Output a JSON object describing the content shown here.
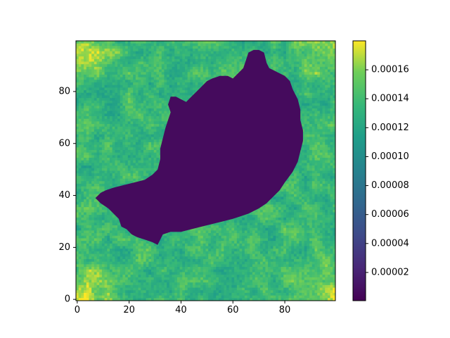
{
  "chart_data": {
    "type": "heatmap",
    "title": "",
    "xlabel": "",
    "ylabel": "",
    "image_size": [
      100,
      100
    ],
    "xlim": [
      -0.5,
      99.5
    ],
    "ylim": [
      99.5,
      -0.5
    ],
    "x_ticks": [
      0,
      20,
      40,
      60,
      80
    ],
    "x_tick_labels": [
      "0",
      "20",
      "40",
      "60",
      "80"
    ],
    "y_ticks": [
      0,
      20,
      40,
      60,
      80
    ],
    "y_tick_labels": [
      "0",
      "20",
      "40",
      "60",
      "80"
    ],
    "colormap": "viridis",
    "colorbar": {
      "range": [
        5e-07,
        0.00018
      ],
      "ticks": [
        2e-05,
        4e-05,
        6e-05,
        8e-05,
        0.0001,
        0.00012,
        0.00014,
        0.00016
      ],
      "tick_labels": [
        "0.00002",
        "0.00004",
        "0.00006",
        "0.00008",
        "0.00010",
        "0.00012",
        "0.00014",
        "0.00016"
      ]
    },
    "content_description": "saliency-like heatmap of a dark bear silhouette (low values) on a bright green-yellow background (high values)",
    "background_level": 0.000135,
    "corner_level": 0.000172,
    "silhouette_level": 6e-06,
    "silhouette_outline": [
      [
        7,
        39
      ],
      [
        9,
        37
      ],
      [
        12,
        35
      ],
      [
        14,
        33
      ],
      [
        16,
        31
      ],
      [
        17,
        28
      ],
      [
        19,
        27
      ],
      [
        21,
        25
      ],
      [
        23,
        24
      ],
      [
        26,
        23
      ],
      [
        29,
        22
      ],
      [
        31,
        21
      ],
      [
        32,
        23
      ],
      [
        33,
        25
      ],
      [
        36,
        26
      ],
      [
        40,
        26
      ],
      [
        44,
        27
      ],
      [
        48,
        28
      ],
      [
        52,
        29
      ],
      [
        56,
        30
      ],
      [
        60,
        31
      ],
      [
        63,
        32
      ],
      [
        66,
        33
      ],
      [
        70,
        35
      ],
      [
        73,
        37
      ],
      [
        75,
        39
      ],
      [
        78,
        42
      ],
      [
        80,
        45
      ],
      [
        83,
        49
      ],
      [
        85,
        53
      ],
      [
        86,
        57
      ],
      [
        87,
        61
      ],
      [
        87,
        65
      ],
      [
        86,
        69
      ],
      [
        86,
        73
      ],
      [
        85,
        77
      ],
      [
        83,
        81
      ],
      [
        82,
        84
      ],
      [
        80,
        86
      ],
      [
        78,
        87
      ],
      [
        76,
        88
      ],
      [
        74,
        89
      ],
      [
        73,
        91
      ],
      [
        72,
        95
      ],
      [
        70,
        96
      ],
      [
        68,
        96
      ],
      [
        66,
        95
      ],
      [
        65,
        92
      ],
      [
        64,
        89
      ],
      [
        62,
        87
      ],
      [
        60,
        85
      ],
      [
        58,
        86
      ],
      [
        55,
        86
      ],
      [
        52,
        85
      ],
      [
        50,
        84
      ],
      [
        48,
        82
      ],
      [
        46,
        80
      ],
      [
        44,
        78
      ],
      [
        42,
        76
      ],
      [
        40,
        77
      ],
      [
        38,
        78
      ],
      [
        36,
        78
      ],
      [
        35,
        75
      ],
      [
        36,
        72
      ],
      [
        35,
        69
      ],
      [
        34,
        66
      ],
      [
        33,
        62
      ],
      [
        32,
        58
      ],
      [
        32,
        54
      ],
      [
        31,
        50
      ],
      [
        29,
        48
      ],
      [
        26,
        46
      ],
      [
        22,
        45
      ],
      [
        18,
        44
      ],
      [
        14,
        43
      ],
      [
        11,
        42
      ],
      [
        9,
        41
      ]
    ]
  }
}
